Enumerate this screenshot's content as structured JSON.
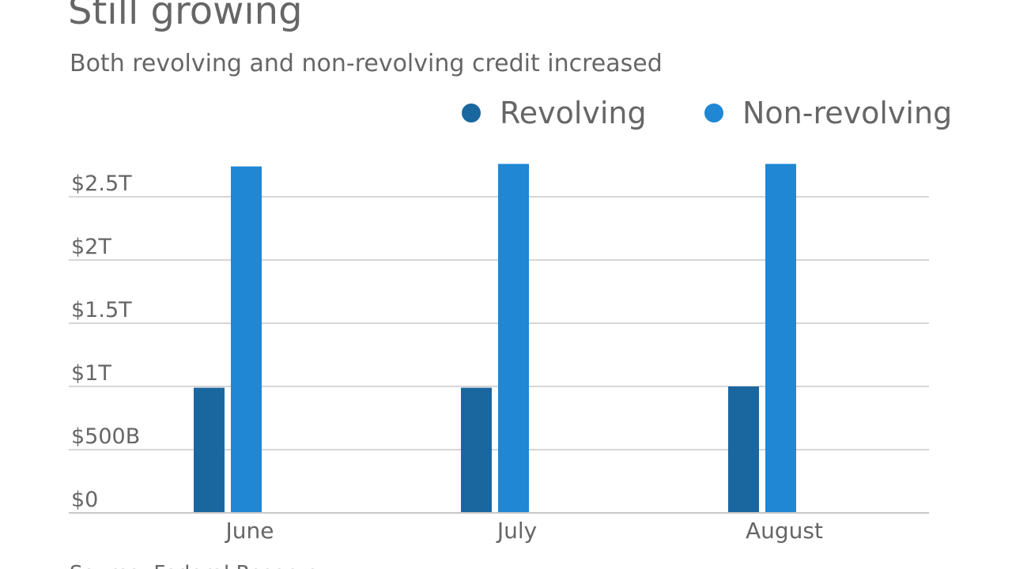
{
  "chart_data": {
    "type": "bar",
    "title": "Still growing",
    "subtitle": "Both revolving and non-revolving credit increased",
    "source": "Source: Federal Reserve",
    "categories": [
      "June",
      "July",
      "August"
    ],
    "series": [
      {
        "name": "Revolving",
        "color": "#1a67a0",
        "values": [
          0.99,
          0.99,
          1.0
        ]
      },
      {
        "name": "Non-revolving",
        "color": "#1f87d3",
        "values": [
          2.74,
          2.76,
          2.76
        ]
      }
    ],
    "ylim": [
      0,
      2.8
    ],
    "yticks": [
      {
        "value": 0,
        "label": "$0"
      },
      {
        "value": 0.5,
        "label": "$500B"
      },
      {
        "value": 1,
        "label": "$1T"
      },
      {
        "value": 1.5,
        "label": "$1.5T"
      },
      {
        "value": 2,
        "label": "$2T"
      },
      {
        "value": 2.5,
        "label": "$2.5T"
      }
    ],
    "grid": true
  }
}
